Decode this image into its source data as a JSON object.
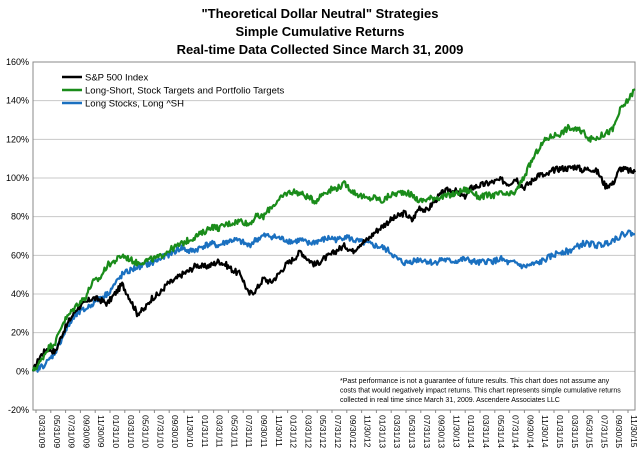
{
  "chart_data": {
    "type": "line",
    "title": [
      "\"Theoretical Dollar Neutral\" Strategies",
      "Simple Cumulative Returns",
      "Real-time Data Collected Since March 31, 2009"
    ],
    "xlabel": "",
    "ylabel": "",
    "ylim": [
      -20,
      160
    ],
    "y_ticks": [
      -20,
      0,
      20,
      40,
      60,
      80,
      100,
      120,
      140,
      160
    ],
    "y_tick_format": "percent",
    "grid": "horizontal",
    "legend_position": "top-left",
    "x_tick_labels": [
      "03/31/09",
      "05/31/09",
      "07/31/09",
      "09/30/09",
      "11/30/09",
      "01/31/10",
      "03/31/10",
      "05/31/10",
      "07/31/10",
      "09/30/10",
      "11/30/10",
      "01/31/11",
      "03/31/11",
      "05/31/11",
      "07/31/11",
      "09/30/11",
      "11/30/11",
      "01/31/12",
      "03/31/12",
      "05/31/12",
      "07/31/12",
      "09/30/12",
      "11/30/12",
      "01/31/13",
      "03/31/13",
      "05/31/13",
      "07/31/13",
      "09/30/13",
      "11/30/13",
      "01/31/14",
      "03/31/14",
      "05/31/14",
      "07/31/14",
      "09/30/14",
      "11/30/14",
      "01/31/15",
      "03/31/15",
      "05/31/15",
      "07/31/15",
      "09/30/15",
      "11/30/15"
    ],
    "x": [
      "03/31/09",
      "04/30/09",
      "05/31/09",
      "06/30/09",
      "07/31/09",
      "08/31/09",
      "09/30/09",
      "10/31/09",
      "11/30/09",
      "12/31/09",
      "01/31/10",
      "02/28/10",
      "03/31/10",
      "04/30/10",
      "05/31/10",
      "06/30/10",
      "07/31/10",
      "08/31/10",
      "09/30/10",
      "10/31/10",
      "11/30/10",
      "12/31/10",
      "01/31/11",
      "02/28/11",
      "03/31/11",
      "04/30/11",
      "05/31/11",
      "06/30/11",
      "07/31/11",
      "08/31/11",
      "09/30/11",
      "10/31/11",
      "11/30/11",
      "12/31/11",
      "01/31/12",
      "02/29/12",
      "03/31/12",
      "04/30/12",
      "05/31/12",
      "06/30/12",
      "07/31/12",
      "08/31/12",
      "09/30/12",
      "10/31/12",
      "11/30/12",
      "12/31/12",
      "01/31/13",
      "02/28/13",
      "03/31/13",
      "04/30/13",
      "05/31/13",
      "06/30/13",
      "07/31/13",
      "08/31/13",
      "09/30/13",
      "10/31/13",
      "11/30/13",
      "12/31/13",
      "01/31/14",
      "02/28/14",
      "03/31/14",
      "04/30/14",
      "05/31/14",
      "06/30/14",
      "07/31/14",
      "08/31/14",
      "09/30/14",
      "10/31/14",
      "11/30/14",
      "12/31/14",
      "01/31/15",
      "02/28/15",
      "03/31/15",
      "04/30/15",
      "05/31/15",
      "06/30/15",
      "07/31/15",
      "08/31/15",
      "09/30/15",
      "10/31/15",
      "11/30/15",
      "12/31/15"
    ],
    "series": [
      {
        "name": "S&P 500 Index",
        "color": "#000000",
        "values": [
          0,
          8,
          12,
          10,
          20,
          27,
          33,
          35,
          38,
          37,
          35,
          40,
          45,
          38,
          30,
          32,
          38,
          40,
          45,
          47,
          50,
          52,
          55,
          54,
          55,
          57,
          55,
          52,
          50,
          40,
          42,
          48,
          46,
          50,
          55,
          58,
          62,
          58,
          55,
          58,
          60,
          63,
          65,
          62,
          66,
          68,
          72,
          75,
          78,
          80,
          82,
          78,
          85,
          83,
          88,
          92,
          94,
          93,
          90,
          95,
          96,
          97,
          98,
          99,
          97,
          100,
          95,
          98,
          102,
          101,
          104,
          105,
          105,
          106,
          104,
          105,
          103,
          96,
          97,
          105,
          104,
          103
        ]
      },
      {
        "name": "Long-Short, Stock Targets and Portfolio Targets",
        "color": "#1a8c1a",
        "values": [
          0,
          5,
          12,
          15,
          25,
          30,
          35,
          38,
          46,
          48,
          55,
          57,
          60,
          58,
          56,
          57,
          58,
          59,
          62,
          64,
          66,
          68,
          70,
          72,
          75,
          74,
          76,
          77,
          78,
          76,
          80,
          80,
          85,
          88,
          92,
          93,
          92,
          90,
          88,
          92,
          94,
          95,
          97,
          93,
          91,
          89,
          90,
          88,
          91,
          92,
          93,
          91,
          88,
          89,
          90,
          90,
          91,
          92,
          94,
          93,
          90,
          91,
          91,
          92,
          91,
          93,
          100,
          108,
          115,
          120,
          122,
          123,
          126,
          125,
          124,
          120,
          121,
          123,
          125,
          135,
          140,
          146
        ]
      },
      {
        "name": "Long Stocks, Long ^SH",
        "color": "#1a70c0",
        "values": [
          0,
          2,
          5,
          10,
          18,
          25,
          30,
          32,
          35,
          38,
          40,
          45,
          50,
          52,
          54,
          55,
          56,
          58,
          60,
          62,
          64,
          62,
          63,
          65,
          66,
          65,
          67,
          68,
          67,
          65,
          68,
          70,
          70,
          69,
          68,
          67,
          68,
          66,
          67,
          68,
          69,
          68,
          70,
          68,
          67,
          66,
          65,
          64,
          62,
          58,
          56,
          57,
          58,
          57,
          56,
          58,
          57,
          57,
          58,
          57,
          56,
          57,
          57,
          58,
          56,
          56,
          54,
          55,
          56,
          58,
          60,
          62,
          62,
          64,
          66,
          66,
          65,
          66,
          68,
          70,
          72,
          71
        ]
      }
    ],
    "annotation": "*Past performance is not a guarantee of future results.  This chart does not assume any costs that would negatively impact returns. This chart represents simple cumulative returns collected in real time since March 31, 2009. Ascendere Associates LLC"
  }
}
